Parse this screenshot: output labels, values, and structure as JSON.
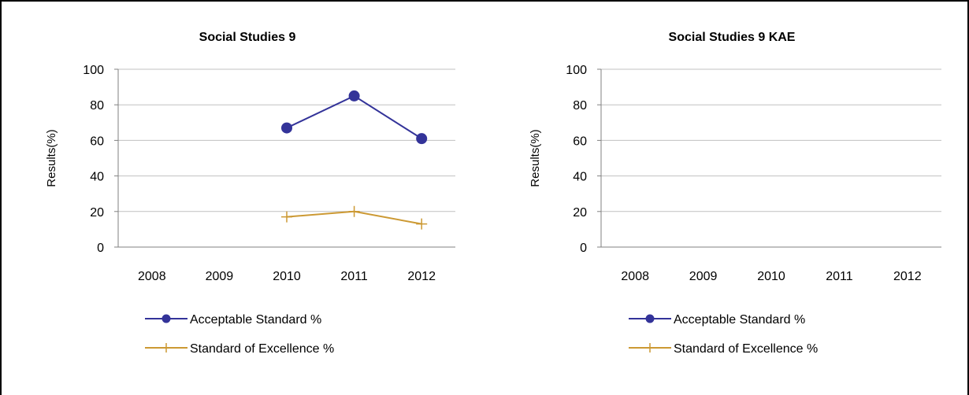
{
  "chart_data": [
    {
      "type": "line",
      "title": "Social Studies 9",
      "xlabel": "",
      "ylabel": "Results(%)",
      "categories": [
        "2008",
        "2009",
        "2010",
        "2011",
        "2012"
      ],
      "ylim": [
        0,
        100
      ],
      "yticks": [
        0,
        20,
        40,
        60,
        80,
        100
      ],
      "grid": true,
      "legend_position": "bottom",
      "series": [
        {
          "name": "Acceptable Standard %",
          "color": "#333399",
          "marker": "circle",
          "values": [
            null,
            null,
            67,
            85,
            61
          ]
        },
        {
          "name": "Standard of Excellence %",
          "color": "#CC9933",
          "marker": "plus",
          "values": [
            null,
            null,
            17,
            20,
            13
          ]
        }
      ]
    },
    {
      "type": "line",
      "title": "Social Studies 9 KAE",
      "xlabel": "",
      "ylabel": "Results(%)",
      "categories": [
        "2008",
        "2009",
        "2010",
        "2011",
        "2012"
      ],
      "ylim": [
        0,
        100
      ],
      "yticks": [
        0,
        20,
        40,
        60,
        80,
        100
      ],
      "grid": true,
      "legend_position": "bottom",
      "series": [
        {
          "name": "Acceptable Standard %",
          "color": "#333399",
          "marker": "circle",
          "values": [
            null,
            null,
            null,
            null,
            null
          ]
        },
        {
          "name": "Standard of Excellence %",
          "color": "#CC9933",
          "marker": "plus",
          "values": [
            null,
            null,
            null,
            null,
            null
          ]
        }
      ]
    }
  ]
}
